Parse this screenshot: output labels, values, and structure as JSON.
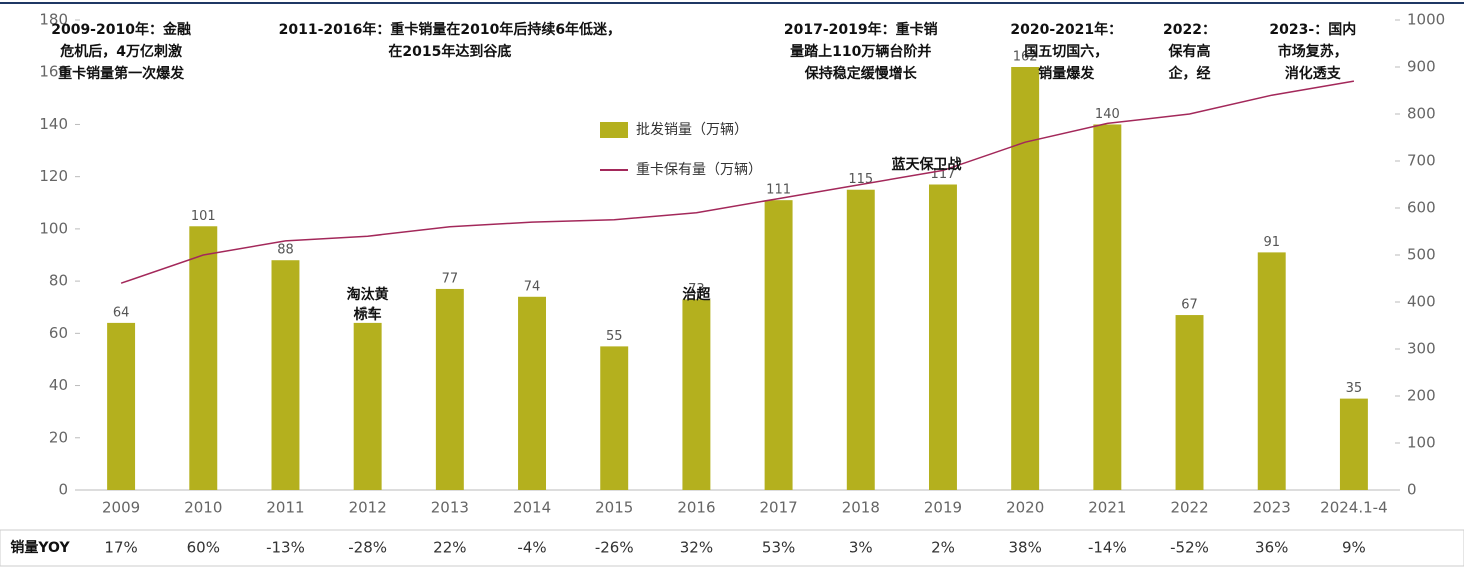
{
  "chart_data": {
    "type": "bar-line",
    "categories": [
      "2009",
      "2010",
      "2011",
      "2012",
      "2013",
      "2014",
      "2015",
      "2016",
      "2017",
      "2018",
      "2019",
      "2020",
      "2021",
      "2022",
      "2023",
      "2024.1-4"
    ],
    "series": [
      {
        "name": "批发销量（万辆）",
        "color": "#b4b01e",
        "type": "bar",
        "values": [
          64,
          101,
          88,
          64,
          77,
          74,
          55,
          73,
          111,
          115,
          117,
          162,
          140,
          67,
          91,
          35
        ]
      },
      {
        "name": "重卡保有量（万辆）",
        "color": "#a3285a",
        "type": "line",
        "axis": "y2",
        "values": [
          440,
          500,
          530,
          540,
          560,
          570,
          575,
          590,
          620,
          650,
          680,
          740,
          780,
          800,
          840,
          870
        ]
      }
    ],
    "ylim": [
      0,
      180
    ],
    "yticks": [
      0,
      20,
      40,
      60,
      80,
      100,
      120,
      140,
      160,
      180
    ],
    "y2lim": [
      0,
      1000
    ],
    "y2ticks": [
      0,
      100,
      200,
      300,
      400,
      500,
      600,
      700,
      800,
      900,
      1000
    ],
    "phases": [
      {
        "text": [
          "2009-2010年：金融",
          "危机后，4万亿刺激",
          "重卡销量第一次爆发"
        ],
        "at": 0
      },
      {
        "text": [
          "2011-2016年：重卡销量在2010年后持续6年低迷，",
          "在2015年达到谷底"
        ],
        "at": 4
      },
      {
        "text": [
          "2017-2019年：重卡销",
          "量踏上110万辆台阶并",
          "保持稳定缓慢增长"
        ],
        "at": 9
      },
      {
        "text": [
          "2020-2021年：",
          "国五切国六，",
          "销量爆发"
        ],
        "at": 11.5
      },
      {
        "text": [
          "2022：",
          "保有高",
          "企，经"
        ],
        "at": 13
      },
      {
        "text": [
          "2023-：国内",
          "市场复苏，",
          "消化透支"
        ],
        "at": 14.5
      }
    ],
    "events": [
      {
        "text": [
          "淘汰黄",
          "标车"
        ],
        "at": 3
      },
      {
        "text": [
          "治超"
        ],
        "at": 7
      },
      {
        "text": [
          "蓝天保卫战"
        ],
        "at": 9.8
      }
    ],
    "yoy_row": {
      "label": "销量YOY",
      "cells": [
        "17%",
        "60%",
        "-13%",
        "-28%",
        "22%",
        "-4%",
        "-26%",
        "32%",
        "53%",
        "3%",
        "2%",
        "38%",
        "-14%",
        "-52%",
        "36%",
        "9%"
      ]
    }
  }
}
